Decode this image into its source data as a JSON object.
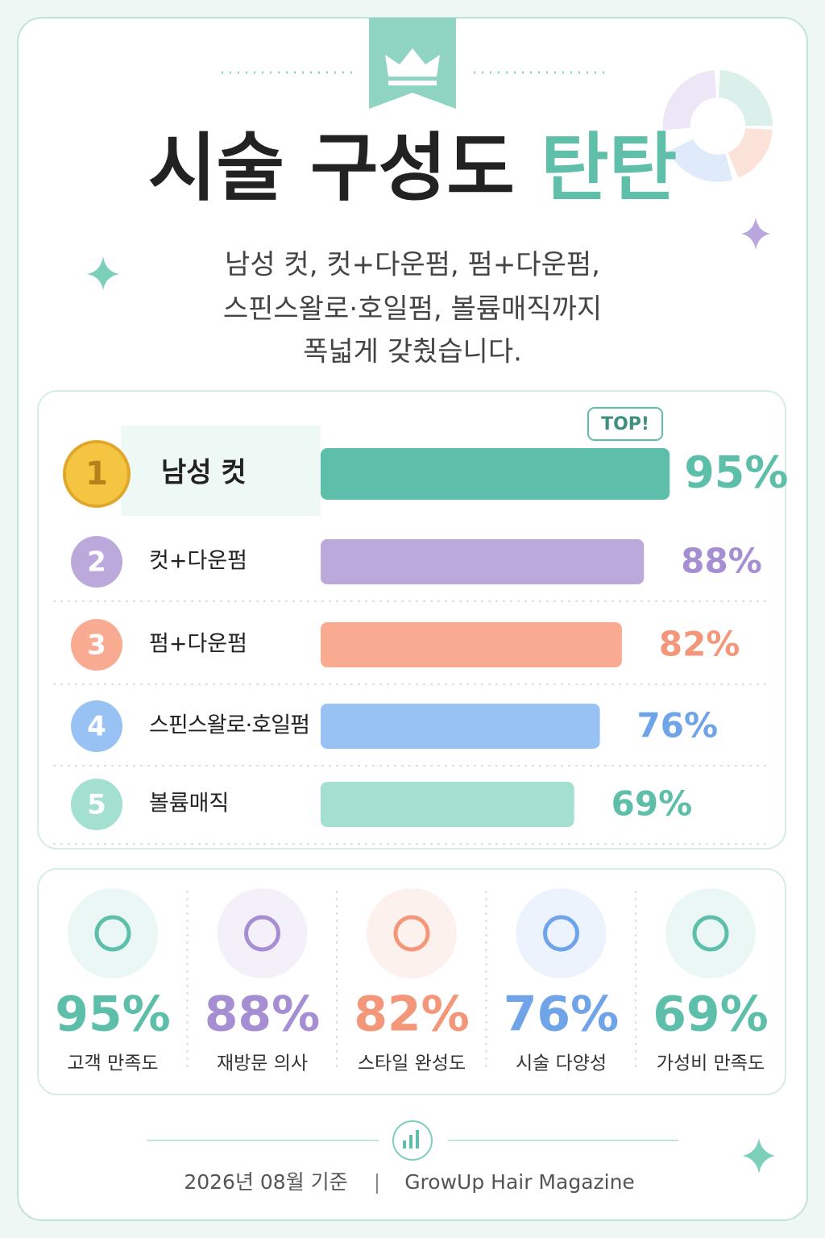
{
  "header": {
    "title_main": "시술 구성도",
    "title_accent": "탄탄",
    "subtitle": [
      "남성 컷, 컷+다운펌, 펌+다운펌,",
      "스핀스왈로·호일펌, 볼륨매직까지",
      "폭넓게 갖췄습니다."
    ]
  },
  "chart_data": {
    "type": "bar",
    "orientation": "horizontal",
    "annotation": "TOP!",
    "ranks": [
      "1",
      "2",
      "3",
      "4",
      "5"
    ],
    "categories": [
      "남성 컷",
      "컷+다운펌",
      "펌+다운펌",
      "스핀스왈로·호일펌",
      "볼륨매직"
    ],
    "values": [
      95,
      88,
      82,
      76,
      69
    ],
    "value_labels": [
      "95%",
      "88%",
      "82%",
      "76%",
      "69%"
    ],
    "colors": [
      "#5dbfa9",
      "#bba9dc",
      "#f9ab92",
      "#97c2f3",
      "#a3e0d2"
    ],
    "label_colors": [
      "#5dbfa9",
      "#a68ed2",
      "#f3967a",
      "#6fa4e8",
      "#5dbfa9"
    ],
    "xlim": [
      0,
      100
    ]
  },
  "stats": {
    "items": [
      {
        "value": "95%",
        "label": "고객 만족도",
        "color": "#5dbfa9"
      },
      {
        "value": "88%",
        "label": "재방문 의사",
        "color": "#a68ed2"
      },
      {
        "value": "82%",
        "label": "스타일 완성도",
        "color": "#f3967a"
      },
      {
        "value": "76%",
        "label": "시술 다양성",
        "color": "#6fa4e8"
      },
      {
        "value": "69%",
        "label": "가성비 만족도",
        "color": "#5dbfa9"
      }
    ]
  },
  "footer": {
    "date": "2026년 08월 기준",
    "source": "GrowUp Hair Magazine"
  }
}
